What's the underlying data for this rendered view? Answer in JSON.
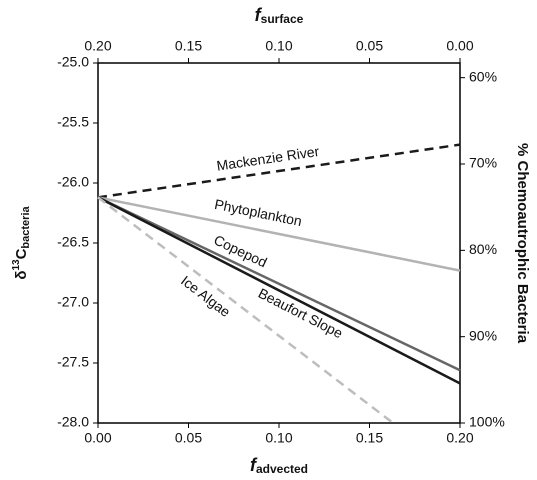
{
  "chart_data": {
    "type": "line",
    "xlabel": {
      "main": "f",
      "sub": "advected"
    },
    "x2label": {
      "main": "f",
      "sub": "surface"
    },
    "ylabel": {
      "pre": "δ",
      "sup": "13",
      "main": "C",
      "sub": "bacteria"
    },
    "y2label": "% Chemoautrophic Bacteria",
    "xlim": [
      0,
      0.2
    ],
    "xticks": [
      {
        "value": 0,
        "label": "0.00"
      },
      {
        "value": 0.05,
        "label": "0.05"
      },
      {
        "value": 0.1,
        "label": "0.10"
      },
      {
        "value": 0.15,
        "label": "0.15"
      },
      {
        "value": 0.2,
        "label": "0.20"
      }
    ],
    "x2lim": [
      0.2,
      0
    ],
    "x2ticks": [
      {
        "value": 0.2,
        "label": "0.20"
      },
      {
        "value": 0.15,
        "label": "0.15"
      },
      {
        "value": 0.1,
        "label": "0.10"
      },
      {
        "value": 0.05,
        "label": "0.05"
      },
      {
        "value": 0,
        "label": "0.00"
      }
    ],
    "ylim": [
      -28,
      -25
    ],
    "yticks": [
      {
        "value": -28,
        "label": "-28.0"
      },
      -27.5,
      {
        "value": -27,
        "label": "-27.0"
      },
      -26.5,
      {
        "value": -26,
        "label": "-26.0"
      },
      -25.5,
      {
        "value": -25,
        "label": "-25.0"
      }
    ],
    "y2lim": [
      100,
      58.3
    ],
    "y2ticks": [
      {
        "value": 100,
        "label": "100%"
      },
      {
        "value": 90,
        "label": "90%"
      },
      {
        "value": 80,
        "label": "80%"
      },
      {
        "value": 70,
        "label": "70%"
      },
      {
        "value": 60,
        "label": "60%"
      }
    ],
    "series": [
      {
        "name": "Mackenzie River",
        "color": "#1a1a1a",
        "dashed": true,
        "x": [
          0,
          0.2
        ],
        "values": [
          -26.12,
          -25.68
        ]
      },
      {
        "name": "Phytoplankton",
        "color": "#b3b3b3",
        "dashed": false,
        "x": [
          0,
          0.2
        ],
        "values": [
          -26.12,
          -26.73
        ]
      },
      {
        "name": "Copepod",
        "color": "#666666",
        "dashed": false,
        "x": [
          0,
          0.2
        ],
        "values": [
          -26.12,
          -27.56
        ]
      },
      {
        "name": "Beaufort Slope",
        "color": "#1a1a1a",
        "dashed": false,
        "x": [
          0,
          0.2
        ],
        "values": [
          -26.12,
          -27.67
        ]
      },
      {
        "name": "Ice Algae",
        "color": "#bdbdbd",
        "dashed": true,
        "x": [
          0,
          0.163
        ],
        "values": [
          -26.12,
          -28.0
        ]
      }
    ]
  }
}
